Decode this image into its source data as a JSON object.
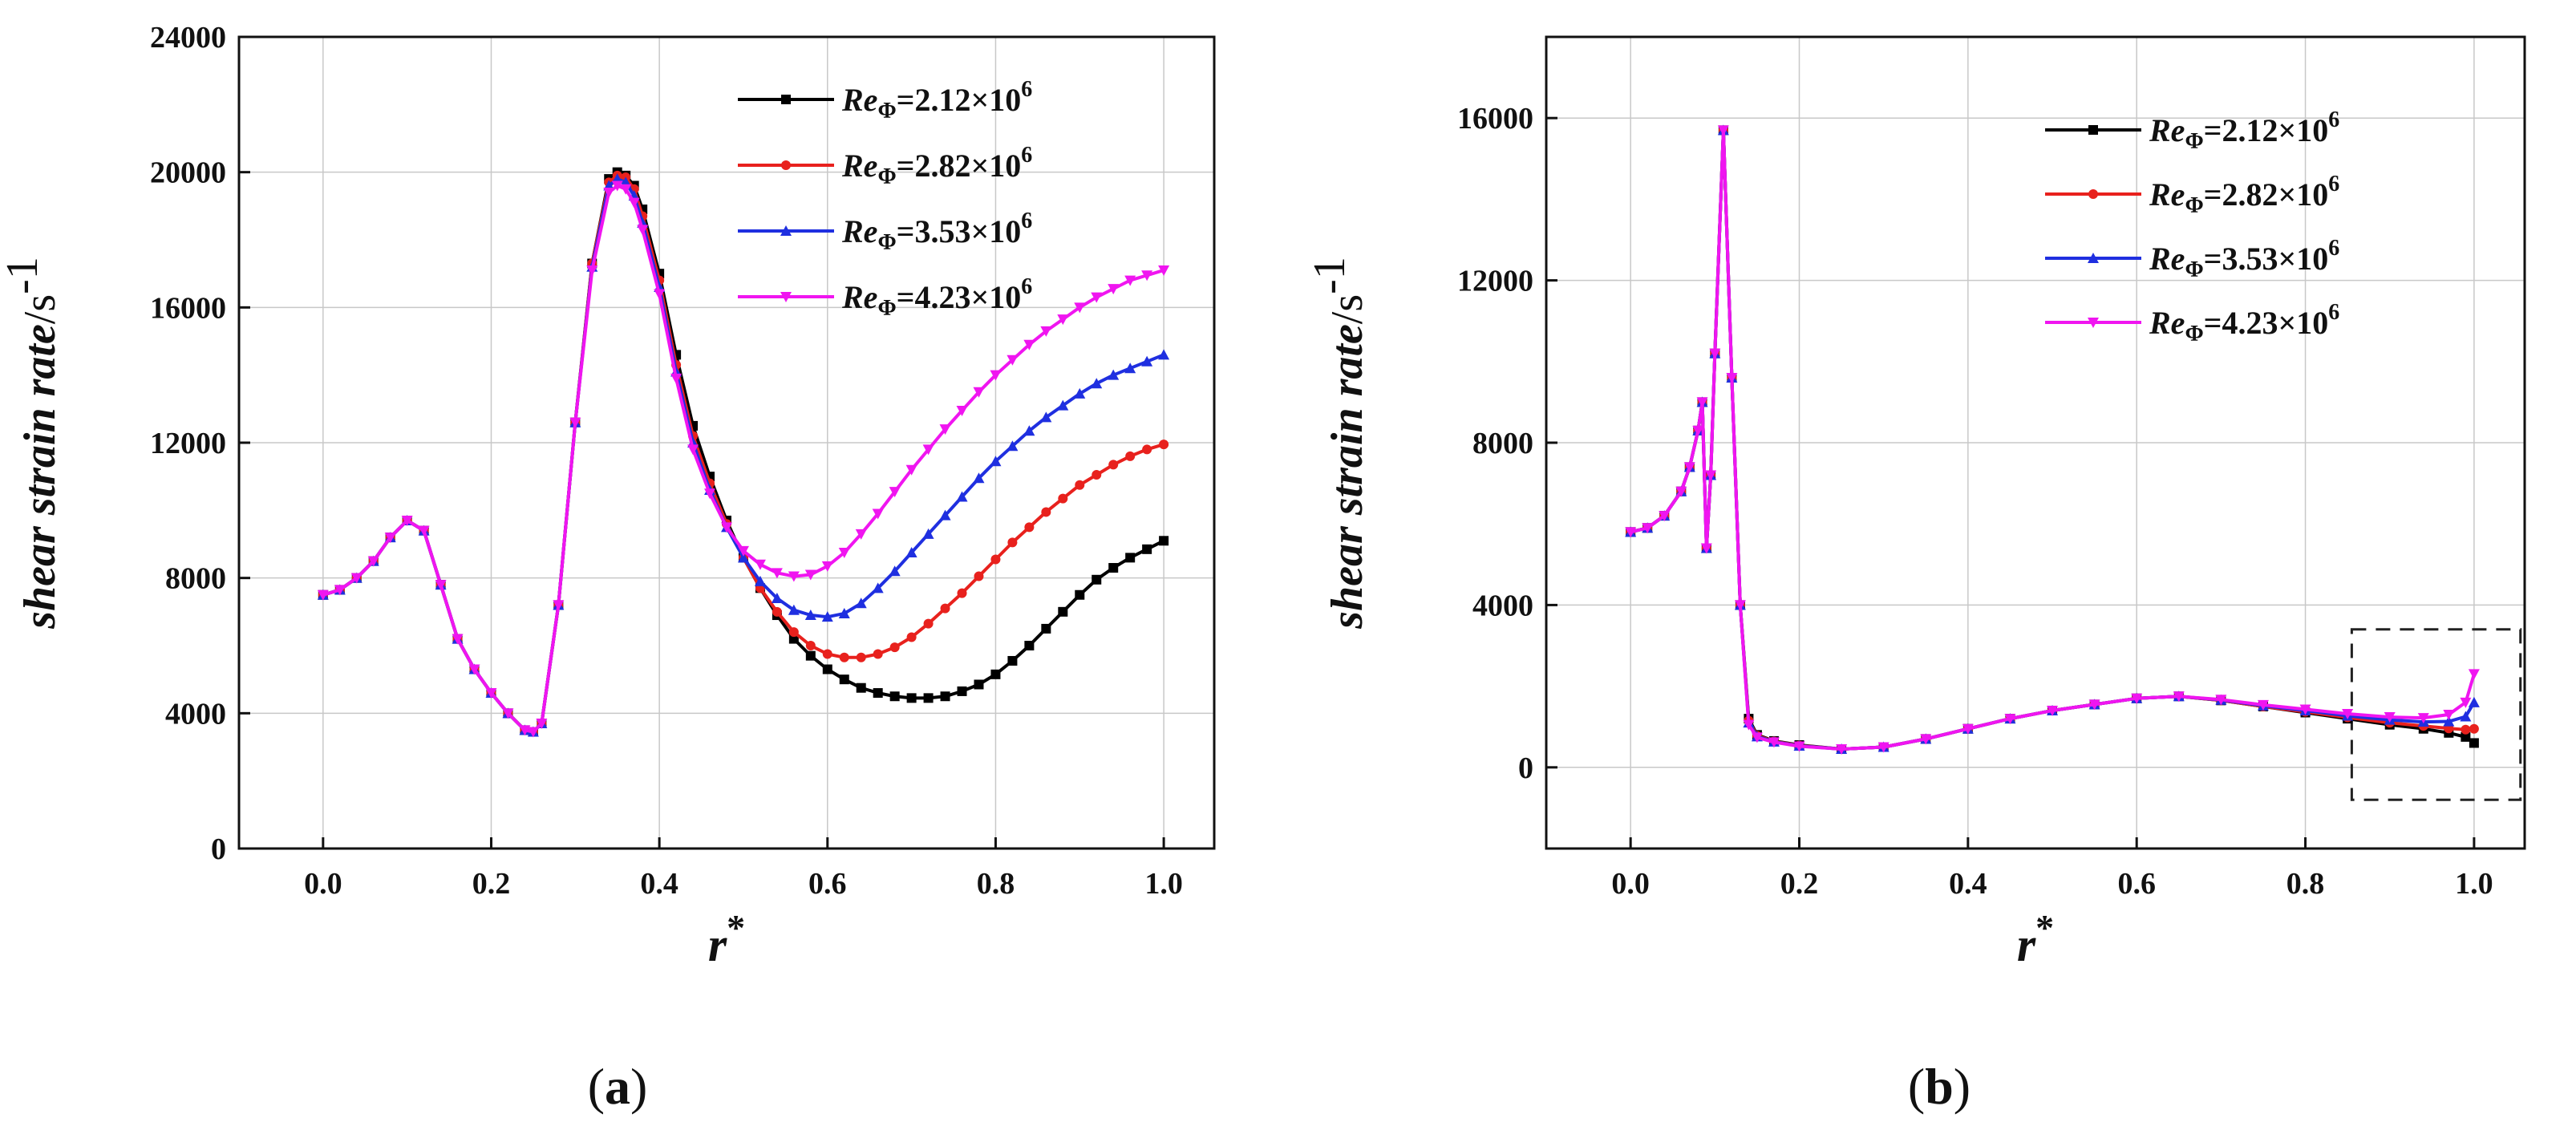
{
  "chart_data": [
    {
      "panel": "a",
      "type": "line",
      "caption": {
        "open": "(",
        "letter": "a",
        "close": ")"
      },
      "ylabel": {
        "text": "shear strain rate",
        "unit": "/s",
        "exp": "-1"
      },
      "xlabel": {
        "text": "r",
        "sup": "*"
      },
      "xlim": [
        -0.1,
        1.06
      ],
      "ylim": [
        0,
        24000
      ],
      "xticks": [
        "0.0",
        "0.2",
        "0.4",
        "0.6",
        "0.8",
        "1.0"
      ],
      "yticks": [
        "0",
        "4000",
        "8000",
        "12000",
        "16000",
        "20000",
        "24000"
      ],
      "grid": true,
      "legend_position": "top-right",
      "series": [
        {
          "name": "Re_Φ=2.12×10^6",
          "color": "#000000",
          "marker": "square",
          "x": [
            0.0,
            0.02,
            0.04,
            0.06,
            0.08,
            0.1,
            0.12,
            0.14,
            0.16,
            0.18,
            0.2,
            0.22,
            0.24,
            0.25,
            0.26,
            0.28,
            0.3,
            0.32,
            0.34,
            0.35,
            0.36,
            0.37,
            0.38,
            0.4,
            0.42,
            0.44,
            0.46,
            0.48,
            0.5,
            0.52,
            0.54,
            0.56,
            0.58,
            0.6,
            0.62,
            0.64,
            0.66,
            0.68,
            0.7,
            0.72,
            0.74,
            0.76,
            0.78,
            0.8,
            0.82,
            0.84,
            0.86,
            0.88,
            0.9,
            0.92,
            0.94,
            0.96,
            0.98,
            1.0
          ],
          "y": [
            7500,
            7650,
            8000,
            8500,
            9200,
            9700,
            9400,
            7800,
            6200,
            5300,
            4600,
            4000,
            3500,
            3450,
            3700,
            7200,
            12600,
            17300,
            19800,
            20000,
            19900,
            19600,
            18900,
            17000,
            14600,
            12500,
            11000,
            9700,
            8600,
            7700,
            6900,
            6200,
            5700,
            5300,
            5000,
            4750,
            4600,
            4500,
            4450,
            4450,
            4500,
            4650,
            4850,
            5150,
            5550,
            6000,
            6500,
            7000,
            7500,
            7950,
            8300,
            8600,
            8850,
            9100
          ]
        },
        {
          "name": "Re_Φ=2.82×10^6",
          "color": "#e8211d",
          "marker": "circle",
          "x": [
            0.0,
            0.02,
            0.04,
            0.06,
            0.08,
            0.1,
            0.12,
            0.14,
            0.16,
            0.18,
            0.2,
            0.22,
            0.24,
            0.25,
            0.26,
            0.28,
            0.3,
            0.32,
            0.34,
            0.35,
            0.36,
            0.37,
            0.38,
            0.4,
            0.42,
            0.44,
            0.46,
            0.48,
            0.5,
            0.52,
            0.54,
            0.56,
            0.58,
            0.6,
            0.62,
            0.64,
            0.66,
            0.68,
            0.7,
            0.72,
            0.74,
            0.76,
            0.78,
            0.8,
            0.82,
            0.84,
            0.86,
            0.88,
            0.9,
            0.92,
            0.94,
            0.96,
            0.98,
            1.0
          ],
          "y": [
            7500,
            7650,
            8000,
            8500,
            9200,
            9700,
            9400,
            7800,
            6200,
            5300,
            4600,
            4000,
            3500,
            3450,
            3700,
            7200,
            12600,
            17300,
            19700,
            19900,
            19850,
            19500,
            18700,
            16800,
            14300,
            12200,
            10800,
            9600,
            8600,
            7700,
            7000,
            6400,
            6000,
            5750,
            5650,
            5650,
            5750,
            5950,
            6250,
            6650,
            7100,
            7550,
            8050,
            8550,
            9050,
            9500,
            9950,
            10350,
            10750,
            11050,
            11350,
            11600,
            11800,
            11950
          ]
        },
        {
          "name": "Re_Φ=3.53×10^6",
          "color": "#1f2fe0",
          "marker": "triangle",
          "x": [
            0.0,
            0.02,
            0.04,
            0.06,
            0.08,
            0.1,
            0.12,
            0.14,
            0.16,
            0.18,
            0.2,
            0.22,
            0.24,
            0.25,
            0.26,
            0.28,
            0.3,
            0.32,
            0.34,
            0.35,
            0.36,
            0.37,
            0.38,
            0.4,
            0.42,
            0.44,
            0.46,
            0.48,
            0.5,
            0.52,
            0.54,
            0.56,
            0.58,
            0.6,
            0.62,
            0.64,
            0.66,
            0.68,
            0.7,
            0.72,
            0.74,
            0.76,
            0.78,
            0.8,
            0.82,
            0.84,
            0.86,
            0.88,
            0.9,
            0.92,
            0.94,
            0.96,
            0.98,
            1.0
          ],
          "y": [
            7500,
            7650,
            8000,
            8500,
            9200,
            9700,
            9400,
            7800,
            6200,
            5300,
            4600,
            4000,
            3500,
            3450,
            3700,
            7200,
            12600,
            17200,
            19600,
            19800,
            19700,
            19300,
            18500,
            16600,
            14100,
            12000,
            10600,
            9500,
            8600,
            7900,
            7400,
            7050,
            6900,
            6850,
            6950,
            7250,
            7700,
            8200,
            8750,
            9300,
            9850,
            10400,
            10950,
            11450,
            11900,
            12350,
            12750,
            13100,
            13450,
            13750,
            14000,
            14200,
            14400,
            14600
          ]
        },
        {
          "name": "Re_Φ=4.23×10^6",
          "color": "#f015f0",
          "marker": "triangle-down",
          "x": [
            0.0,
            0.02,
            0.04,
            0.06,
            0.08,
            0.1,
            0.12,
            0.14,
            0.16,
            0.18,
            0.2,
            0.22,
            0.24,
            0.25,
            0.26,
            0.28,
            0.3,
            0.32,
            0.34,
            0.35,
            0.36,
            0.37,
            0.38,
            0.4,
            0.42,
            0.44,
            0.46,
            0.48,
            0.5,
            0.52,
            0.54,
            0.56,
            0.58,
            0.6,
            0.62,
            0.64,
            0.66,
            0.68,
            0.7,
            0.72,
            0.74,
            0.76,
            0.78,
            0.8,
            0.82,
            0.84,
            0.86,
            0.88,
            0.9,
            0.92,
            0.94,
            0.96,
            0.98,
            1.0
          ],
          "y": [
            7500,
            7650,
            8000,
            8500,
            9200,
            9700,
            9400,
            7800,
            6200,
            5300,
            4600,
            4000,
            3500,
            3450,
            3700,
            7200,
            12600,
            17100,
            19400,
            19600,
            19500,
            19100,
            18300,
            16400,
            13900,
            11800,
            10500,
            9500,
            8800,
            8400,
            8150,
            8050,
            8100,
            8350,
            8750,
            9300,
            9900,
            10550,
            11200,
            11800,
            12400,
            12950,
            13500,
            14000,
            14450,
            14900,
            15300,
            15650,
            16000,
            16300,
            16550,
            16800,
            16950,
            17100
          ]
        }
      ]
    },
    {
      "panel": "b",
      "type": "line",
      "caption": {
        "open": "(",
        "letter": "b",
        "close": ")"
      },
      "ylabel": {
        "text": "shear strain rate",
        "unit": "/s",
        "exp": "-1"
      },
      "xlabel": {
        "text": "r",
        "sup": "*"
      },
      "xlim": [
        -0.1,
        1.06
      ],
      "ylim": [
        -2000,
        18000
      ],
      "xticks": [
        "0.0",
        "0.2",
        "0.4",
        "0.6",
        "0.8",
        "1.0"
      ],
      "yticks": [
        "0",
        "4000",
        "8000",
        "12000",
        "16000"
      ],
      "grid": true,
      "legend_position": "top-right",
      "highlight_box": {
        "x0": 0.855,
        "x1": 1.055,
        "y0": -800,
        "y1": 3400
      },
      "series": [
        {
          "name": "Re_Φ=2.12×10^6",
          "color": "#000000",
          "marker": "square",
          "x": [
            0.0,
            0.02,
            0.04,
            0.06,
            0.07,
            0.08,
            0.085,
            0.09,
            0.095,
            0.1,
            0.11,
            0.12,
            0.13,
            0.14,
            0.15,
            0.17,
            0.2,
            0.25,
            0.3,
            0.35,
            0.4,
            0.45,
            0.5,
            0.55,
            0.6,
            0.65,
            0.7,
            0.75,
            0.8,
            0.85,
            0.9,
            0.94,
            0.97,
            0.99,
            1.0
          ],
          "y": [
            5800,
            5900,
            6200,
            6800,
            7400,
            8300,
            9000,
            5400,
            7200,
            10200,
            15700,
            9600,
            4000,
            1200,
            800,
            650,
            550,
            450,
            500,
            700,
            950,
            1200,
            1400,
            1550,
            1700,
            1750,
            1650,
            1500,
            1350,
            1200,
            1050,
            950,
            850,
            750,
            600
          ]
        },
        {
          "name": "Re_Φ=2.82×10^6",
          "color": "#e8211d",
          "marker": "circle",
          "x": [
            0.0,
            0.02,
            0.04,
            0.06,
            0.07,
            0.08,
            0.085,
            0.09,
            0.095,
            0.1,
            0.11,
            0.12,
            0.13,
            0.14,
            0.15,
            0.17,
            0.2,
            0.25,
            0.3,
            0.35,
            0.4,
            0.45,
            0.5,
            0.55,
            0.6,
            0.65,
            0.7,
            0.75,
            0.8,
            0.85,
            0.9,
            0.94,
            0.97,
            0.99,
            1.0
          ],
          "y": [
            5800,
            5900,
            6200,
            6800,
            7400,
            8300,
            9000,
            5400,
            7200,
            10200,
            15700,
            9600,
            4000,
            1150,
            780,
            640,
            540,
            450,
            500,
            700,
            950,
            1200,
            1400,
            1550,
            1700,
            1750,
            1650,
            1500,
            1370,
            1230,
            1100,
            1020,
            960,
            930,
            950
          ]
        },
        {
          "name": "Re_Φ=3.53×10^6",
          "color": "#1f2fe0",
          "marker": "triangle",
          "x": [
            0.0,
            0.02,
            0.04,
            0.06,
            0.07,
            0.08,
            0.085,
            0.09,
            0.095,
            0.1,
            0.11,
            0.12,
            0.13,
            0.14,
            0.15,
            0.17,
            0.2,
            0.25,
            0.3,
            0.35,
            0.4,
            0.45,
            0.5,
            0.55,
            0.6,
            0.65,
            0.7,
            0.75,
            0.8,
            0.85,
            0.9,
            0.94,
            0.97,
            0.99,
            1.0
          ],
          "y": [
            5800,
            5900,
            6200,
            6800,
            7400,
            8300,
            9000,
            5400,
            7200,
            10200,
            15700,
            9600,
            4000,
            1100,
            760,
            630,
            530,
            450,
            500,
            700,
            950,
            1200,
            1400,
            1550,
            1700,
            1750,
            1660,
            1520,
            1400,
            1270,
            1170,
            1120,
            1130,
            1250,
            1600
          ]
        },
        {
          "name": "Re_Φ=4.23×10^6",
          "color": "#f015f0",
          "marker": "triangle-down",
          "x": [
            0.0,
            0.02,
            0.04,
            0.06,
            0.07,
            0.08,
            0.085,
            0.09,
            0.095,
            0.1,
            0.11,
            0.12,
            0.13,
            0.14,
            0.15,
            0.17,
            0.2,
            0.25,
            0.3,
            0.35,
            0.4,
            0.45,
            0.5,
            0.55,
            0.6,
            0.65,
            0.7,
            0.75,
            0.8,
            0.85,
            0.9,
            0.94,
            0.97,
            0.99,
            1.0
          ],
          "y": [
            5800,
            5900,
            6200,
            6800,
            7400,
            8300,
            9000,
            5400,
            7200,
            10200,
            15700,
            9600,
            4000,
            1050,
            740,
            620,
            520,
            450,
            500,
            700,
            950,
            1200,
            1400,
            1550,
            1700,
            1750,
            1670,
            1540,
            1430,
            1320,
            1240,
            1220,
            1300,
            1600,
            2300
          ]
        }
      ]
    }
  ]
}
